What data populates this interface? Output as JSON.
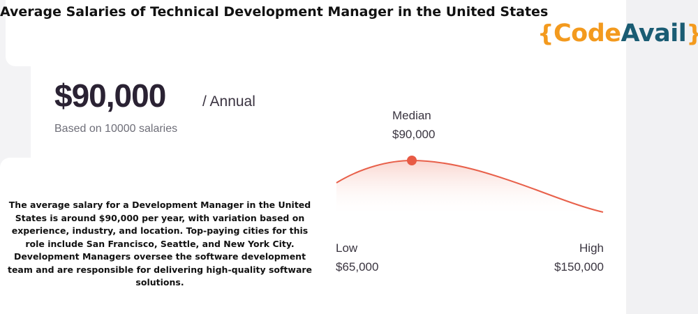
{
  "title": "Average Salaries of Technical Development Manager in the United States",
  "logo": {
    "brace_open": "{",
    "part1": "Code",
    "part2": "Avail",
    "brace_close": "}"
  },
  "salary": {
    "amount": "$90,000",
    "period": "/ Annual",
    "based_on": "Based on 10000 salaries"
  },
  "range": {
    "median_label": "Median",
    "median_value": "$90,000",
    "low_label": "Low",
    "low_value": "$65,000",
    "high_label": "High",
    "high_value": "$150,000"
  },
  "description": "The average salary for a Development Manager in the United States is around $90,000 per year, with variation based on experience, industry, and location. Top-paying cities for this role include San Francisco, Seattle, and New York City. Development Managers oversee the software development team and are responsible for delivering high-quality software solutions.",
  "colors": {
    "curve": "#e8604a",
    "marker": "#e85a44",
    "logo_orange": "#f39a1e",
    "logo_blue": "#1a5c73"
  }
}
